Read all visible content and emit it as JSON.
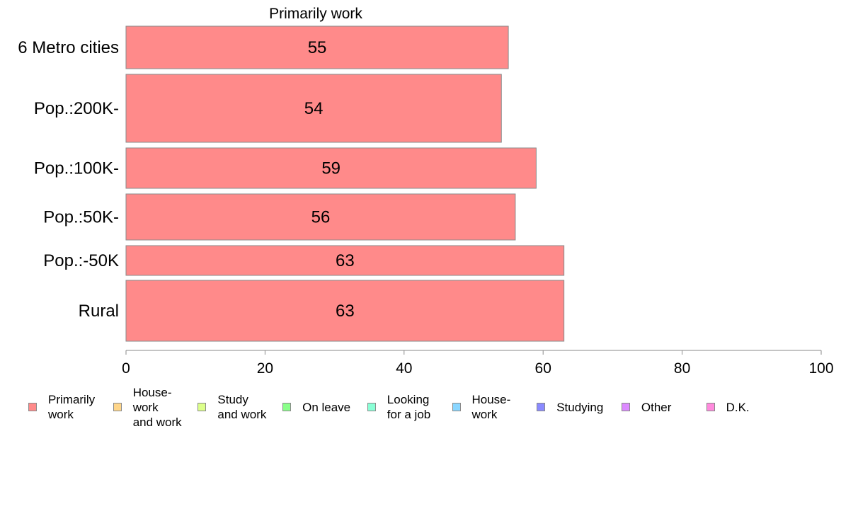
{
  "chart_data": {
    "type": "bar",
    "orientation": "horizontal",
    "title": "Primarily work",
    "categories": [
      "6 Metro cities",
      "Pop.:200K-",
      "Pop.:100K-",
      "Pop.:50K-",
      "Pop.:-50K",
      "Rural"
    ],
    "series": [
      {
        "name": "Primarily work",
        "values": [
          55,
          54,
          59,
          56,
          63,
          63
        ],
        "color": "#ff8a8a"
      }
    ],
    "data_labels": [
      "55",
      "54",
      "59",
      "56",
      "63",
      "63"
    ],
    "xlim": [
      0,
      100
    ],
    "xticks": [
      0,
      20,
      40,
      60,
      80,
      100
    ],
    "xlabel": "",
    "ylabel": "",
    "grid": false,
    "legend_position": "bottom",
    "legend": [
      {
        "label": "Primarily\nwork",
        "color": "#ff8a8a"
      },
      {
        "label": "House-\nwork\nand work",
        "color": "#ffd68a"
      },
      {
        "label": "Study\nand work",
        "color": "#dcff8a"
      },
      {
        "label": "On leave",
        "color": "#8aff8a"
      },
      {
        "label": "Looking\nfor a job",
        "color": "#8affd6"
      },
      {
        "label": "House-\nwork",
        "color": "#8ad6ff"
      },
      {
        "label": "Studying",
        "color": "#8a8aff"
      },
      {
        "label": "Other",
        "color": "#dc8aff"
      },
      {
        "label": "D.K.",
        "color": "#ff8add"
      }
    ]
  }
}
